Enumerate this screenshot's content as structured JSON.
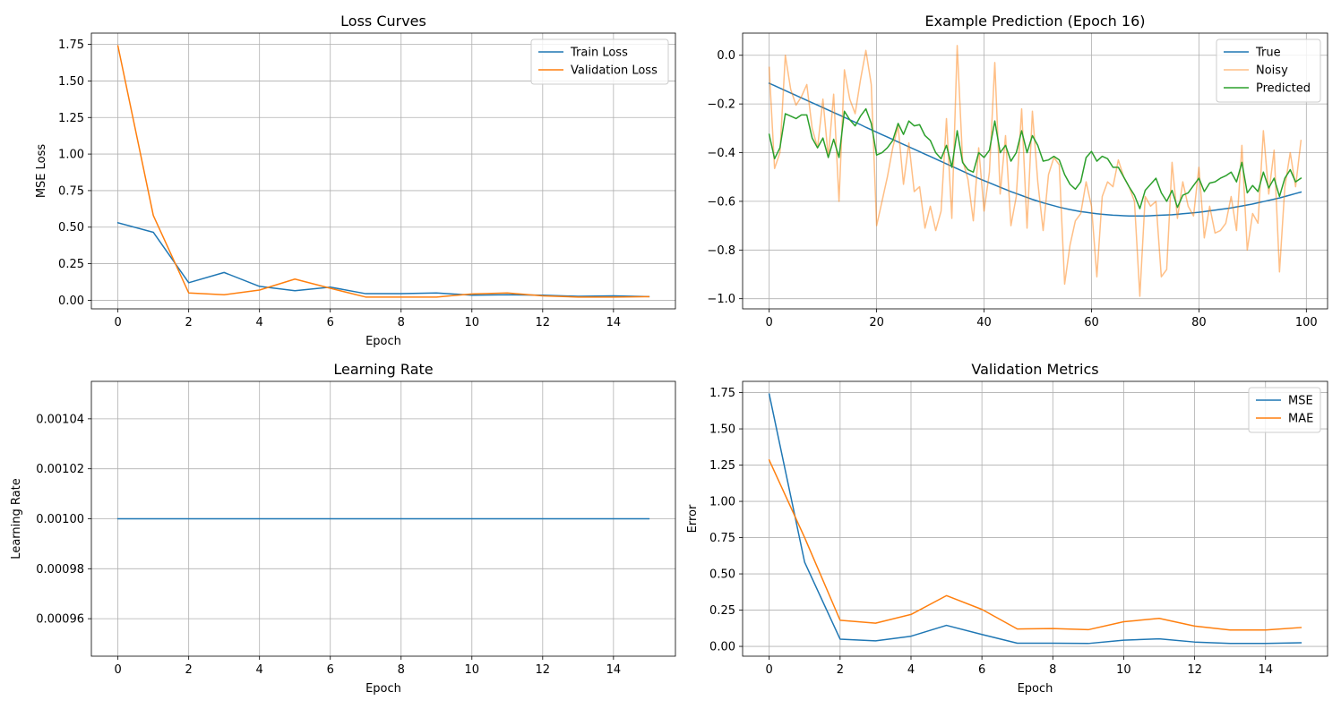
{
  "chart_data": [
    {
      "type": "line",
      "title": "Loss Curves",
      "xlabel": "Epoch",
      "ylabel": "MSE Loss",
      "xlim": [
        -0.75,
        15.75
      ],
      "ylim": [
        -0.0587,
        1.8271
      ],
      "xticks": [
        0,
        2,
        4,
        6,
        8,
        10,
        12,
        14
      ],
      "yticks": [
        0.0,
        0.25,
        0.5,
        0.75,
        1.0,
        1.25,
        1.5,
        1.75
      ],
      "ytick_labels": [
        "0.00",
        "0.25",
        "0.50",
        "0.75",
        "1.00",
        "1.25",
        "1.50",
        "1.75"
      ],
      "xtick_labels": [
        "0",
        "2",
        "4",
        "6",
        "8",
        "10",
        "12",
        "14"
      ],
      "grid": true,
      "legend": "top-right",
      "x": [
        0,
        1,
        2,
        3,
        4,
        5,
        6,
        7,
        8,
        9,
        10,
        11,
        12,
        13,
        14,
        15
      ],
      "series": [
        {
          "name": "Train Loss",
          "color": "#1f77b4",
          "width": 1.5,
          "alpha": 1,
          "values": [
            0.53,
            0.465,
            0.12,
            0.19,
            0.095,
            0.065,
            0.09,
            0.045,
            0.045,
            0.05,
            0.035,
            0.038,
            0.035,
            0.027,
            0.03,
            0.025
          ]
        },
        {
          "name": "Validation Loss",
          "color": "#ff7f0e",
          "width": 1.5,
          "alpha": 1,
          "values": [
            1.74,
            0.58,
            0.05,
            0.038,
            0.07,
            0.145,
            0.082,
            0.022,
            0.022,
            0.022,
            0.043,
            0.05,
            0.03,
            0.022,
            0.022,
            0.025
          ]
        }
      ]
    },
    {
      "type": "line",
      "title": "Example Prediction (Epoch 16)",
      "xlabel": "",
      "ylabel": "",
      "xlim": [
        -4.95,
        103.95
      ],
      "ylim": [
        -1.0416,
        0.091
      ],
      "xticks": [
        0,
        20,
        40,
        60,
        80,
        100
      ],
      "xtick_labels": [
        "0",
        "20",
        "40",
        "60",
        "80",
        "100"
      ],
      "yticks": [
        0.0,
        -0.2,
        -0.4,
        -0.6,
        -0.8,
        -1.0
      ],
      "ytick_labels": [
        "0.0",
        "−0.2",
        "−0.4",
        "−0.6",
        "−0.8",
        "−1.0"
      ],
      "grid": true,
      "legend": "top-right",
      "series": [
        {
          "name": "True",
          "color": "#1f77b4",
          "width": 1.5,
          "alpha": 1,
          "values": [
            -0.115,
            -0.125,
            -0.135,
            -0.145,
            -0.155,
            -0.165,
            -0.175,
            -0.185,
            -0.195,
            -0.205,
            -0.215,
            -0.225,
            -0.235,
            -0.245,
            -0.255,
            -0.265,
            -0.275,
            -0.285,
            -0.296,
            -0.306,
            -0.316,
            -0.326,
            -0.336,
            -0.346,
            -0.356,
            -0.366,
            -0.376,
            -0.386,
            -0.396,
            -0.406,
            -0.416,
            -0.426,
            -0.436,
            -0.446,
            -0.456,
            -0.466,
            -0.476,
            -0.486,
            -0.496,
            -0.506,
            -0.515,
            -0.524,
            -0.533,
            -0.542,
            -0.551,
            -0.56,
            -0.568,
            -0.576,
            -0.584,
            -0.592,
            -0.599,
            -0.606,
            -0.612,
            -0.618,
            -0.624,
            -0.629,
            -0.634,
            -0.638,
            -0.642,
            -0.645,
            -0.648,
            -0.651,
            -0.653,
            -0.655,
            -0.657,
            -0.658,
            -0.659,
            -0.66,
            -0.66,
            -0.66,
            -0.66,
            -0.659,
            -0.658,
            -0.657,
            -0.656,
            -0.655,
            -0.653,
            -0.651,
            -0.649,
            -0.647,
            -0.645,
            -0.642,
            -0.639,
            -0.636,
            -0.633,
            -0.63,
            -0.627,
            -0.623,
            -0.619,
            -0.615,
            -0.611,
            -0.606,
            -0.601,
            -0.596,
            -0.591,
            -0.586,
            -0.58,
            -0.574,
            -0.568,
            -0.562
          ]
        },
        {
          "name": "Noisy",
          "color": "#ff7f0e",
          "width": 1.5,
          "alpha": 0.5,
          "values": [
            -0.05,
            -0.465,
            -0.4,
            0.0,
            -0.14,
            -0.205,
            -0.17,
            -0.12,
            -0.3,
            -0.38,
            -0.18,
            -0.42,
            -0.16,
            -0.6,
            -0.06,
            -0.18,
            -0.24,
            -0.1,
            0.02,
            -0.12,
            -0.7,
            -0.6,
            -0.5,
            -0.38,
            -0.29,
            -0.53,
            -0.36,
            -0.56,
            -0.54,
            -0.71,
            -0.62,
            -0.72,
            -0.64,
            -0.26,
            -0.67,
            0.04,
            -0.43,
            -0.51,
            -0.68,
            -0.38,
            -0.64,
            -0.48,
            -0.03,
            -0.57,
            -0.33,
            -0.7,
            -0.58,
            -0.22,
            -0.71,
            -0.23,
            -0.52,
            -0.72,
            -0.49,
            -0.42,
            -0.45,
            -0.94,
            -0.78,
            -0.68,
            -0.65,
            -0.52,
            -0.62,
            -0.91,
            -0.58,
            -0.52,
            -0.54,
            -0.43,
            -0.5,
            -0.54,
            -0.6,
            -0.99,
            -0.58,
            -0.62,
            -0.6,
            -0.91,
            -0.88,
            -0.44,
            -0.67,
            -0.52,
            -0.62,
            -0.66,
            -0.46,
            -0.75,
            -0.62,
            -0.73,
            -0.72,
            -0.69,
            -0.58,
            -0.72,
            -0.37,
            -0.8,
            -0.65,
            -0.69,
            -0.31,
            -0.57,
            -0.39,
            -0.89,
            -0.54,
            -0.4,
            -0.54,
            -0.35
          ]
        },
        {
          "name": "Predicted",
          "color": "#2ca02c",
          "width": 1.5,
          "alpha": 1,
          "values": [
            -0.325,
            -0.425,
            -0.38,
            -0.24,
            -0.25,
            -0.26,
            -0.245,
            -0.245,
            -0.34,
            -0.38,
            -0.34,
            -0.42,
            -0.345,
            -0.42,
            -0.23,
            -0.265,
            -0.29,
            -0.25,
            -0.22,
            -0.28,
            -0.41,
            -0.4,
            -0.38,
            -0.35,
            -0.28,
            -0.325,
            -0.27,
            -0.29,
            -0.285,
            -0.33,
            -0.35,
            -0.4,
            -0.425,
            -0.37,
            -0.46,
            -0.31,
            -0.44,
            -0.47,
            -0.48,
            -0.4,
            -0.42,
            -0.39,
            -0.27,
            -0.4,
            -0.37,
            -0.435,
            -0.4,
            -0.31,
            -0.4,
            -0.33,
            -0.37,
            -0.435,
            -0.43,
            -0.415,
            -0.43,
            -0.49,
            -0.53,
            -0.55,
            -0.52,
            -0.42,
            -0.395,
            -0.435,
            -0.415,
            -0.425,
            -0.46,
            -0.46,
            -0.5,
            -0.54,
            -0.575,
            -0.63,
            -0.555,
            -0.53,
            -0.505,
            -0.565,
            -0.6,
            -0.555,
            -0.625,
            -0.575,
            -0.565,
            -0.535,
            -0.505,
            -0.56,
            -0.525,
            -0.52,
            -0.505,
            -0.495,
            -0.48,
            -0.52,
            -0.44,
            -0.565,
            -0.535,
            -0.56,
            -0.48,
            -0.545,
            -0.505,
            -0.58,
            -0.505,
            -0.47,
            -0.52,
            -0.505
          ]
        }
      ]
    },
    {
      "type": "line",
      "title": "Learning Rate",
      "xlabel": "Epoch",
      "ylabel": "Learning Rate",
      "xlim": [
        -0.75,
        15.75
      ],
      "ylim": [
        0.000945,
        0.001055
      ],
      "xticks": [
        0,
        2,
        4,
        6,
        8,
        10,
        12,
        14
      ],
      "xtick_labels": [
        "0",
        "2",
        "4",
        "6",
        "8",
        "10",
        "12",
        "14"
      ],
      "yticks": [
        0.00096,
        0.00098,
        0.001,
        0.00102,
        0.00104
      ],
      "ytick_labels": [
        "0.00096",
        "0.00098",
        "0.00100",
        "0.00102",
        "0.00104"
      ],
      "grid": true,
      "legend": "none",
      "x": [
        0,
        1,
        2,
        3,
        4,
        5,
        6,
        7,
        8,
        9,
        10,
        11,
        12,
        13,
        14,
        15
      ],
      "series": [
        {
          "name": "",
          "color": "#1f77b4",
          "width": 1.5,
          "alpha": 1,
          "values": [
            0.001,
            0.001,
            0.001,
            0.001,
            0.001,
            0.001,
            0.001,
            0.001,
            0.001,
            0.001,
            0.001,
            0.001,
            0.001,
            0.001,
            0.001,
            0.001
          ]
        }
      ]
    },
    {
      "type": "line",
      "title": "Validation Metrics",
      "xlabel": "Epoch",
      "ylabel": "Error",
      "xlim": [
        -0.75,
        15.75
      ],
      "ylim": [
        -0.0676,
        1.8276
      ],
      "xticks": [
        0,
        2,
        4,
        6,
        8,
        10,
        12,
        14
      ],
      "xtick_labels": [
        "0",
        "2",
        "4",
        "6",
        "8",
        "10",
        "12",
        "14"
      ],
      "yticks": [
        0.0,
        0.25,
        0.5,
        0.75,
        1.0,
        1.25,
        1.5,
        1.75
      ],
      "ytick_labels": [
        "0.00",
        "0.25",
        "0.50",
        "0.75",
        "1.00",
        "1.25",
        "1.50",
        "1.75"
      ],
      "grid": true,
      "legend": "top-right",
      "x": [
        0,
        1,
        2,
        3,
        4,
        5,
        6,
        7,
        8,
        9,
        10,
        11,
        12,
        13,
        14,
        15
      ],
      "series": [
        {
          "name": "MSE",
          "color": "#1f77b4",
          "width": 1.5,
          "alpha": 1,
          "values": [
            1.74,
            0.58,
            0.05,
            0.038,
            0.07,
            0.145,
            0.082,
            0.022,
            0.022,
            0.02,
            0.043,
            0.052,
            0.03,
            0.02,
            0.02,
            0.025
          ]
        },
        {
          "name": "MAE",
          "color": "#ff7f0e",
          "width": 1.5,
          "alpha": 1,
          "values": [
            1.285,
            0.75,
            0.18,
            0.16,
            0.22,
            0.35,
            0.255,
            0.12,
            0.123,
            0.115,
            0.17,
            0.193,
            0.14,
            0.113,
            0.113,
            0.13
          ]
        }
      ]
    }
  ]
}
